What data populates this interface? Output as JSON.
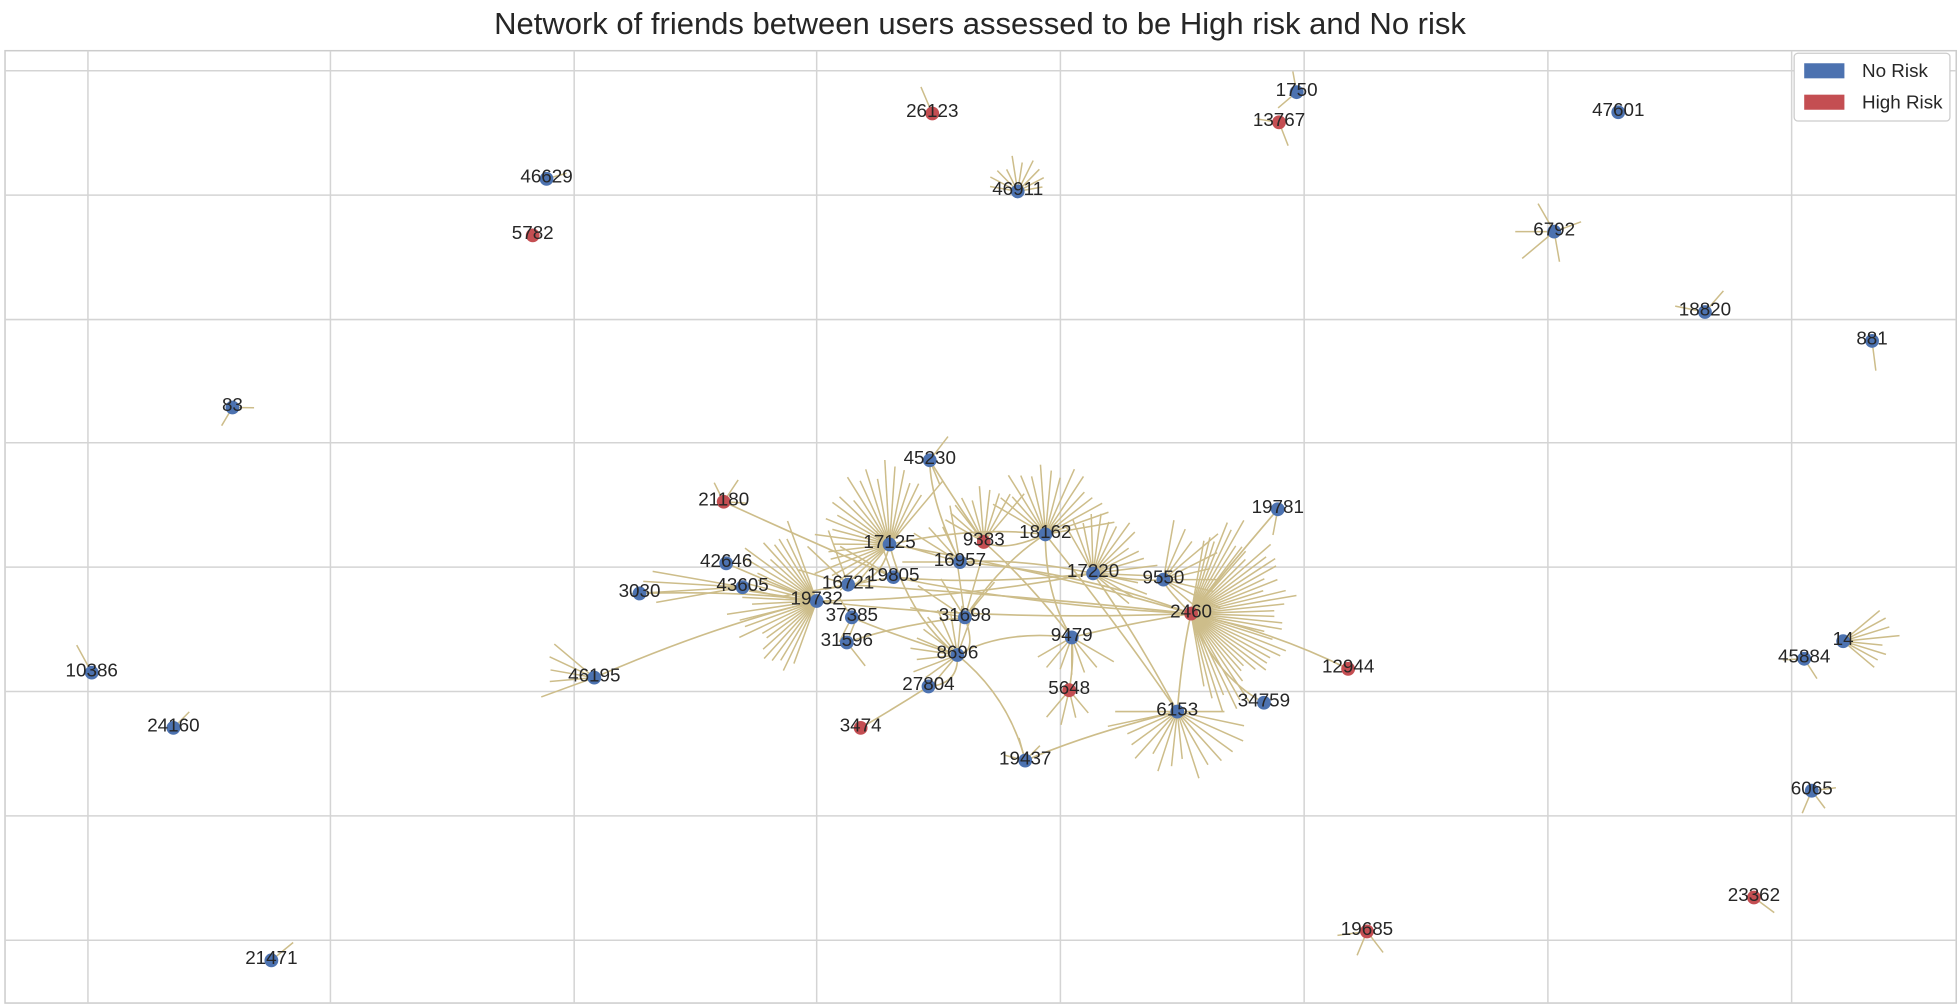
{
  "chart_data": {
    "type": "network",
    "title": "Network of friends between users assessed to be High risk and No risk",
    "grid": true,
    "legend": {
      "placement": "top-right",
      "entries": [
        {
          "label": "No Risk",
          "color": "#4c72b0"
        },
        {
          "label": "High Risk",
          "color": "#c44e52"
        }
      ]
    },
    "edge_color": "#cdbd8a",
    "nodes": [
      {
        "id": "1750",
        "risk": "No Risk",
        "leaf_friends": 2
      },
      {
        "id": "13767",
        "risk": "High Risk",
        "leaf_friends": 2
      },
      {
        "id": "26123",
        "risk": "High Risk",
        "leaf_friends": 1
      },
      {
        "id": "47601",
        "risk": "No Risk",
        "leaf_friends": 0
      },
      {
        "id": "46629",
        "risk": "No Risk",
        "leaf_friends": 1
      },
      {
        "id": "46911",
        "risk": "No Risk",
        "leaf_friends": 10
      },
      {
        "id": "5782",
        "risk": "High Risk",
        "leaf_friends": 0
      },
      {
        "id": "6792",
        "risk": "No Risk",
        "leaf_friends": 5
      },
      {
        "id": "18820",
        "risk": "No Risk",
        "leaf_friends": 2
      },
      {
        "id": "881",
        "risk": "No Risk",
        "leaf_friends": 1
      },
      {
        "id": "83",
        "risk": "No Risk",
        "leaf_friends": 2
      },
      {
        "id": "45230",
        "risk": "No Risk",
        "leaf_friends": 2
      },
      {
        "id": "21180",
        "risk": "High Risk",
        "leaf_friends": 3
      },
      {
        "id": "19781",
        "risk": "No Risk",
        "leaf_friends": 1
      },
      {
        "id": "17125",
        "risk": "No Risk",
        "leaf_friends": 26
      },
      {
        "id": "9383",
        "risk": "High Risk",
        "leaf_friends": 10
      },
      {
        "id": "18162",
        "risk": "No Risk",
        "leaf_friends": 16
      },
      {
        "id": "42646",
        "risk": "No Risk",
        "leaf_friends": 0
      },
      {
        "id": "16957",
        "risk": "No Risk",
        "leaf_friends": 6
      },
      {
        "id": "17220",
        "risk": "No Risk",
        "leaf_friends": 18
      },
      {
        "id": "9550",
        "risk": "No Risk",
        "leaf_friends": 10
      },
      {
        "id": "3030",
        "risk": "No Risk",
        "leaf_friends": 0
      },
      {
        "id": "43605",
        "risk": "No Risk",
        "leaf_friends": 4
      },
      {
        "id": "16721",
        "risk": "No Risk",
        "leaf_friends": 4
      },
      {
        "id": "19805",
        "risk": "No Risk",
        "leaf_friends": 3
      },
      {
        "id": "19732",
        "risk": "No Risk",
        "leaf_friends": 26
      },
      {
        "id": "37385",
        "risk": "No Risk",
        "leaf_friends": 2
      },
      {
        "id": "31698",
        "risk": "No Risk",
        "leaf_friends": 6
      },
      {
        "id": "2460",
        "risk": "High Risk",
        "leaf_friends": 42
      },
      {
        "id": "9479",
        "risk": "No Risk",
        "leaf_friends": 7
      },
      {
        "id": "31596",
        "risk": "No Risk",
        "leaf_friends": 2
      },
      {
        "id": "8696",
        "risk": "No Risk",
        "leaf_friends": 12
      },
      {
        "id": "27804",
        "risk": "No Risk",
        "leaf_friends": 0
      },
      {
        "id": "5648",
        "risk": "High Risk",
        "leaf_friends": 4
      },
      {
        "id": "12944",
        "risk": "High Risk",
        "leaf_friends": 0
      },
      {
        "id": "46195",
        "risk": "No Risk",
        "leaf_friends": 5
      },
      {
        "id": "10386",
        "risk": "No Risk",
        "leaf_friends": 1
      },
      {
        "id": "24160",
        "risk": "No Risk",
        "leaf_friends": 1
      },
      {
        "id": "6153",
        "risk": "No Risk",
        "leaf_friends": 16
      },
      {
        "id": "34759",
        "risk": "No Risk",
        "leaf_friends": 0
      },
      {
        "id": "3474",
        "risk": "High Risk",
        "leaf_friends": 0
      },
      {
        "id": "19437",
        "risk": "No Risk",
        "leaf_friends": 3
      },
      {
        "id": "45884",
        "risk": "No Risk",
        "leaf_friends": 2
      },
      {
        "id": "14",
        "risk": "No Risk",
        "leaf_friends": 8
      },
      {
        "id": "6065",
        "risk": "No Risk",
        "leaf_friends": 3
      },
      {
        "id": "23362",
        "risk": "High Risk",
        "leaf_friends": 1
      },
      {
        "id": "19685",
        "risk": "High Risk",
        "leaf_friends": 3
      },
      {
        "id": "21471",
        "risk": "No Risk",
        "leaf_friends": 1
      }
    ],
    "edges": [
      [
        "45230",
        "9383"
      ],
      [
        "45230",
        "16957"
      ],
      [
        "21180",
        "19805"
      ],
      [
        "19732",
        "2460"
      ],
      [
        "16721",
        "2460"
      ],
      [
        "19805",
        "2460"
      ],
      [
        "16957",
        "2460"
      ],
      [
        "17125",
        "2460"
      ],
      [
        "46195",
        "19732"
      ],
      [
        "3474",
        "27804"
      ],
      [
        "8696",
        "9479"
      ],
      [
        "8696",
        "31698"
      ],
      [
        "19437",
        "6153"
      ],
      [
        "19437",
        "8696"
      ],
      [
        "19781",
        "2460"
      ],
      [
        "12944",
        "2460"
      ],
      [
        "34759",
        "2460"
      ],
      [
        "6153",
        "2460"
      ],
      [
        "6153",
        "17220"
      ],
      [
        "9479",
        "18162"
      ],
      [
        "31596",
        "31698"
      ],
      [
        "8696",
        "17125"
      ],
      [
        "9383",
        "18162"
      ],
      [
        "9383",
        "9479"
      ],
      [
        "5648",
        "9479"
      ],
      [
        "17220",
        "9550"
      ],
      [
        "9550",
        "2460"
      ],
      [
        "31698",
        "18162"
      ],
      [
        "37385",
        "8696"
      ],
      [
        "43605",
        "19732"
      ],
      [
        "3030",
        "19732"
      ],
      [
        "42646",
        "19732"
      ],
      [
        "17220",
        "19732"
      ],
      [
        "9479",
        "2460"
      ],
      [
        "16957",
        "17220"
      ],
      [
        "17125",
        "18162"
      ],
      [
        "19805",
        "17220"
      ],
      [
        "16721",
        "17125"
      ],
      [
        "27804",
        "8696"
      ],
      [
        "6153",
        "18162"
      ]
    ]
  }
}
